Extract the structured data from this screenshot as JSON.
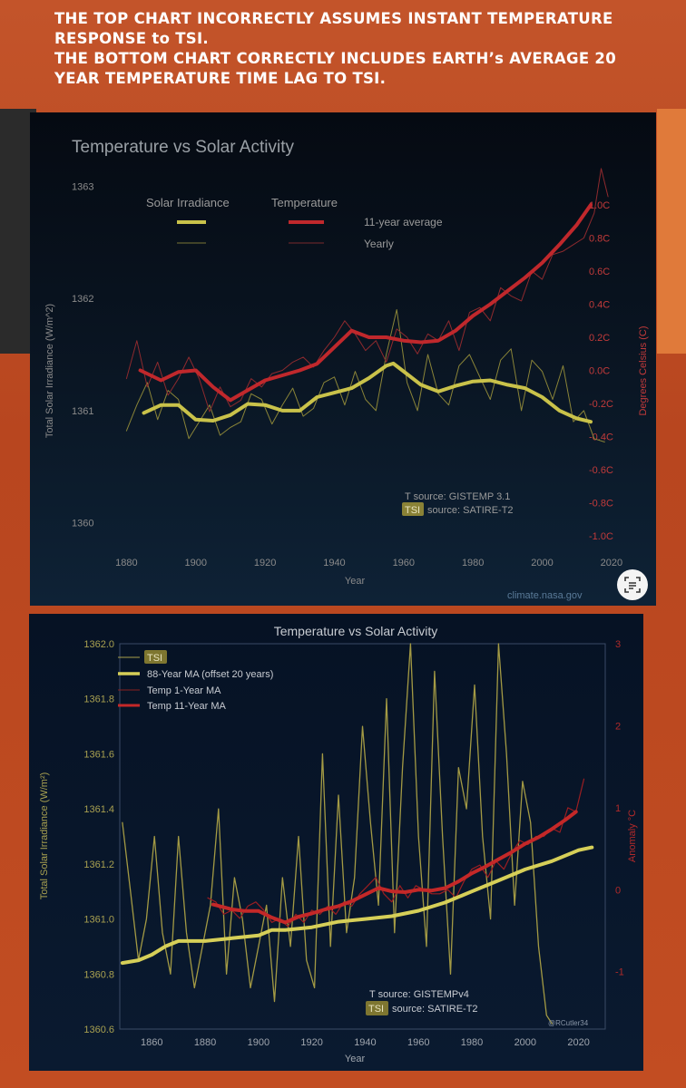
{
  "caption": {
    "line1": "THE TOP CHART INCORRECTLY ASSUMES INSTANT TEMPERATURE",
    "line2": "RESPONSE to TSI.",
    "line3": "THE BOTTOM CHART CORRECTLY INCLUDES EARTH’s AVERAGE  20",
    "line4": "YEAR TEMPERATURE TIME LAG TO TSI."
  },
  "chart_data": [
    {
      "type": "line",
      "title": "Temperature vs Solar Activity",
      "xlabel": "Year",
      "ylabel": "Total Solar Irradiance (W/m^2)",
      "ylabel_right": "Degrees Celsius (C)",
      "xlim": [
        1860,
        2025
      ],
      "ylim": [
        1359.9,
        1363.1
      ],
      "ylim_right": [
        -1.0,
        1.0
      ],
      "x_ticks": [
        1880,
        1900,
        1920,
        1940,
        1960,
        1980,
        2000,
        2020
      ],
      "y_ticks": [
        1360,
        1361,
        1362,
        1363
      ],
      "y_ticks_right": [
        "-1.0C",
        "-0.8C",
        "-0.6C",
        "-0.4C",
        "-0.2C",
        "0.0C",
        "0.2C",
        "0.4C",
        "0.6C",
        "0.8C",
        "1.0C"
      ],
      "legend": {
        "header_left": "Solar Irradiance",
        "header_right": "Temperature",
        "row1": "11-year average",
        "row2": "Yearly"
      },
      "source_t": "T source: GISTEMP 3.1",
      "source_tsi_badge": "TSI",
      "source_tsi_text": "source: SATIRE-T2",
      "watermark": "climate.nasa.gov",
      "colors": {
        "tsi": "#c9c24a",
        "temp": "#c0282c",
        "axis_text": "#9a9a9a",
        "right_axis_text": "#c23a3a"
      },
      "series": [
        {
          "name": "Solar Irradiance 11-year average",
          "axis": "left",
          "x": [
            1885,
            1890,
            1895,
            1900,
            1905,
            1910,
            1915,
            1920,
            1925,
            1930,
            1935,
            1940,
            1945,
            1950,
            1955,
            1957,
            1960,
            1965,
            1970,
            1975,
            1980,
            1985,
            1990,
            1995,
            2000,
            2005,
            2010,
            2014
          ],
          "y": [
            1360.98,
            1361.05,
            1361.05,
            1360.92,
            1360.91,
            1360.96,
            1361.06,
            1361.05,
            1361.0,
            1361.0,
            1361.12,
            1361.16,
            1361.2,
            1361.29,
            1361.4,
            1361.42,
            1361.35,
            1361.23,
            1361.17,
            1361.22,
            1361.26,
            1361.27,
            1361.23,
            1361.2,
            1361.12,
            1361.0,
            1360.93,
            1360.9
          ]
        },
        {
          "name": "Solar Irradiance yearly",
          "axis": "left",
          "x": [
            1880,
            1883,
            1886,
            1889,
            1892,
            1895,
            1898,
            1901,
            1904,
            1907,
            1910,
            1913,
            1916,
            1919,
            1922,
            1925,
            1928,
            1931,
            1934,
            1937,
            1940,
            1943,
            1946,
            1949,
            1952,
            1955,
            1958,
            1961,
            1964,
            1967,
            1970,
            1973,
            1976,
            1979,
            1982,
            1985,
            1988,
            1991,
            1994,
            1997,
            2000,
            2003,
            2006,
            2009,
            2012,
            2015,
            2018
          ],
          "y": [
            1360.82,
            1361.05,
            1361.25,
            1360.92,
            1361.18,
            1361.1,
            1360.75,
            1360.9,
            1361.05,
            1360.78,
            1360.85,
            1360.9,
            1361.15,
            1361.1,
            1360.88,
            1361.05,
            1361.2,
            1360.95,
            1361.02,
            1361.25,
            1361.3,
            1361.05,
            1361.35,
            1361.1,
            1361.0,
            1361.5,
            1361.9,
            1361.25,
            1361.0,
            1361.5,
            1361.15,
            1361.05,
            1361.4,
            1361.5,
            1361.3,
            1361.1,
            1361.45,
            1361.55,
            1361.0,
            1361.45,
            1361.35,
            1361.1,
            1361.4,
            1360.9,
            1361.0,
            1360.75,
            1360.72
          ]
        },
        {
          "name": "Temperature 11-year average",
          "axis": "right",
          "x": [
            1884,
            1890,
            1895,
            1900,
            1905,
            1910,
            1915,
            1920,
            1925,
            1930,
            1935,
            1940,
            1945,
            1950,
            1955,
            1960,
            1965,
            1970,
            1975,
            1980,
            1985,
            1990,
            1995,
            2000,
            2005,
            2010,
            2014
          ],
          "y": [
            0.0,
            -0.06,
            -0.01,
            0.0,
            -0.1,
            -0.18,
            -0.12,
            -0.06,
            -0.03,
            0.0,
            0.04,
            0.14,
            0.24,
            0.2,
            0.2,
            0.18,
            0.17,
            0.18,
            0.24,
            0.33,
            0.4,
            0.48,
            0.56,
            0.65,
            0.76,
            0.88,
            1.0
          ]
        },
        {
          "name": "Temperature yearly",
          "axis": "right",
          "x": [
            1880,
            1883,
            1886,
            1889,
            1892,
            1895,
            1898,
            1901,
            1904,
            1907,
            1910,
            1913,
            1916,
            1919,
            1922,
            1925,
            1928,
            1931,
            1934,
            1937,
            1940,
            1943,
            1946,
            1949,
            1952,
            1955,
            1958,
            1961,
            1964,
            1967,
            1970,
            1973,
            1976,
            1979,
            1982,
            1985,
            1988,
            1991,
            1994,
            1997,
            2000,
            2003,
            2006,
            2009,
            2012,
            2015,
            2017,
            2019
          ],
          "y": [
            -0.05,
            0.18,
            -0.1,
            0.05,
            -0.15,
            -0.05,
            0.08,
            -0.05,
            -0.25,
            -0.1,
            -0.22,
            -0.18,
            -0.05,
            -0.1,
            -0.02,
            0.0,
            0.05,
            0.08,
            0.02,
            0.12,
            0.2,
            0.3,
            0.22,
            0.12,
            0.18,
            0.05,
            0.25,
            0.2,
            0.1,
            0.22,
            0.18,
            0.3,
            0.12,
            0.35,
            0.38,
            0.3,
            0.5,
            0.45,
            0.42,
            0.6,
            0.55,
            0.7,
            0.72,
            0.76,
            0.8,
            0.95,
            1.22,
            1.05
          ]
        }
      ]
    },
    {
      "type": "line",
      "title": "Temperature vs Solar Activity",
      "xlabel": "Year",
      "ylabel": "Total Solar Irradiance (W/m²)",
      "ylabel_right": "Anomaly °C",
      "xlim": [
        1848,
        2030
      ],
      "ylim": [
        1360.6,
        1362.0
      ],
      "ylim_right": [
        -1.7,
        3.0
      ],
      "x_ticks": [
        1860,
        1880,
        1900,
        1920,
        1940,
        1960,
        1980,
        2000,
        2020
      ],
      "y_ticks": [
        "1360.6",
        "1360.8",
        "1361.0",
        "1361.2",
        "1361.4",
        "1361.6",
        "1361.8",
        "1362.0"
      ],
      "y_ticks_right": [
        "-1",
        "0",
        "1",
        "2",
        "3"
      ],
      "legend": [
        "TSI",
        "88-Year MA (offset 20 years)",
        "Temp 1-Year MA",
        "Temp 11-Year MA"
      ],
      "source_t": "T source: GISTEMPv4",
      "source_tsi_badge": "TSI",
      "source_tsi_text": "source: SATIRE-T2",
      "watermark": "@RCutler34",
      "colors": {
        "tsi": "#c9c24a",
        "temp": "#c42828",
        "axis_text": "#9aa0a8",
        "right_axis_text": "#b02a2a",
        "tick_text_left": "#a8a050"
      },
      "series": [
        {
          "name": "TSI",
          "axis": "left",
          "x": [
            1849,
            1852,
            1855,
            1858,
            1861,
            1864,
            1867,
            1870,
            1873,
            1876,
            1879,
            1882,
            1885,
            1888,
            1891,
            1894,
            1897,
            1900,
            1903,
            1906,
            1909,
            1912,
            1915,
            1918,
            1921,
            1924,
            1927,
            1930,
            1933,
            1936,
            1939,
            1942,
            1945,
            1948,
            1951,
            1954,
            1957,
            1960,
            1963,
            1966,
            1969,
            1972,
            1975,
            1978,
            1981,
            1984,
            1987,
            1990,
            1993,
            1996,
            1999,
            2002,
            2005,
            2008,
            2010
          ],
          "y": [
            1361.35,
            1361.1,
            1360.85,
            1361.0,
            1361.3,
            1360.95,
            1360.8,
            1361.3,
            1360.95,
            1360.75,
            1360.9,
            1361.05,
            1361.4,
            1360.8,
            1361.15,
            1361.0,
            1360.75,
            1360.9,
            1361.05,
            1360.7,
            1361.15,
            1360.9,
            1361.3,
            1360.85,
            1360.75,
            1361.6,
            1360.9,
            1361.45,
            1360.95,
            1361.15,
            1361.7,
            1361.35,
            1361.05,
            1361.8,
            1360.95,
            1361.55,
            1362.0,
            1361.3,
            1360.9,
            1361.9,
            1361.3,
            1360.8,
            1361.55,
            1361.4,
            1361.85,
            1361.3,
            1361.0,
            1362.0,
            1361.6,
            1361.05,
            1361.5,
            1361.35,
            1360.9,
            1360.65,
            1360.62
          ]
        },
        {
          "name": "88-Year MA (offset 20 years)",
          "axis": "left",
          "x": [
            1849,
            1855,
            1860,
            1865,
            1870,
            1880,
            1890,
            1900,
            1905,
            1910,
            1920,
            1930,
            1940,
            1950,
            1960,
            1970,
            1980,
            1990,
            2000,
            2010,
            2020,
            2025
          ],
          "y": [
            1360.84,
            1360.85,
            1360.87,
            1360.9,
            1360.92,
            1360.92,
            1360.93,
            1360.94,
            1360.96,
            1360.96,
            1360.97,
            1360.99,
            1361.0,
            1361.01,
            1361.03,
            1361.06,
            1361.1,
            1361.14,
            1361.18,
            1361.21,
            1361.25,
            1361.26
          ]
        },
        {
          "name": "Temp 1-Year MA",
          "axis": "right",
          "x": [
            1881,
            1884,
            1887,
            1890,
            1893,
            1896,
            1899,
            1902,
            1905,
            1908,
            1911,
            1914,
            1917,
            1920,
            1923,
            1926,
            1929,
            1932,
            1935,
            1938,
            1941,
            1944,
            1947,
            1950,
            1953,
            1956,
            1959,
            1962,
            1965,
            1968,
            1971,
            1974,
            1977,
            1980,
            1983,
            1986,
            1989,
            1992,
            1995,
            1998,
            2001,
            2004,
            2007,
            2010,
            2013,
            2016,
            2019,
            2022
          ],
          "y": [
            -0.1,
            -0.15,
            -0.3,
            -0.25,
            -0.35,
            -0.2,
            -0.15,
            -0.25,
            -0.4,
            -0.35,
            -0.45,
            -0.3,
            -0.4,
            -0.25,
            -0.3,
            -0.2,
            -0.3,
            -0.15,
            -0.2,
            -0.05,
            0.05,
            0.15,
            -0.05,
            -0.15,
            0.05,
            -0.1,
            0.05,
            0.0,
            -0.05,
            -0.05,
            0.0,
            -0.1,
            0.1,
            0.25,
            0.3,
            0.15,
            0.35,
            0.25,
            0.45,
            0.6,
            0.55,
            0.65,
            0.65,
            0.75,
            0.7,
            1.0,
            0.95,
            1.35
          ]
        },
        {
          "name": "Temp 11-Year MA",
          "axis": "right",
          "x": [
            1883,
            1890,
            1895,
            1900,
            1905,
            1910,
            1915,
            1920,
            1925,
            1930,
            1935,
            1940,
            1945,
            1950,
            1955,
            1960,
            1965,
            1970,
            1975,
            1980,
            1985,
            1990,
            1995,
            2000,
            2005,
            2010,
            2015,
            2019
          ],
          "y": [
            -0.18,
            -0.24,
            -0.26,
            -0.26,
            -0.34,
            -0.4,
            -0.33,
            -0.29,
            -0.24,
            -0.2,
            -0.14,
            -0.06,
            0.02,
            -0.02,
            -0.03,
            0.0,
            -0.01,
            0.02,
            0.1,
            0.2,
            0.28,
            0.37,
            0.46,
            0.56,
            0.64,
            0.74,
            0.85,
            0.95
          ]
        }
      ]
    }
  ]
}
